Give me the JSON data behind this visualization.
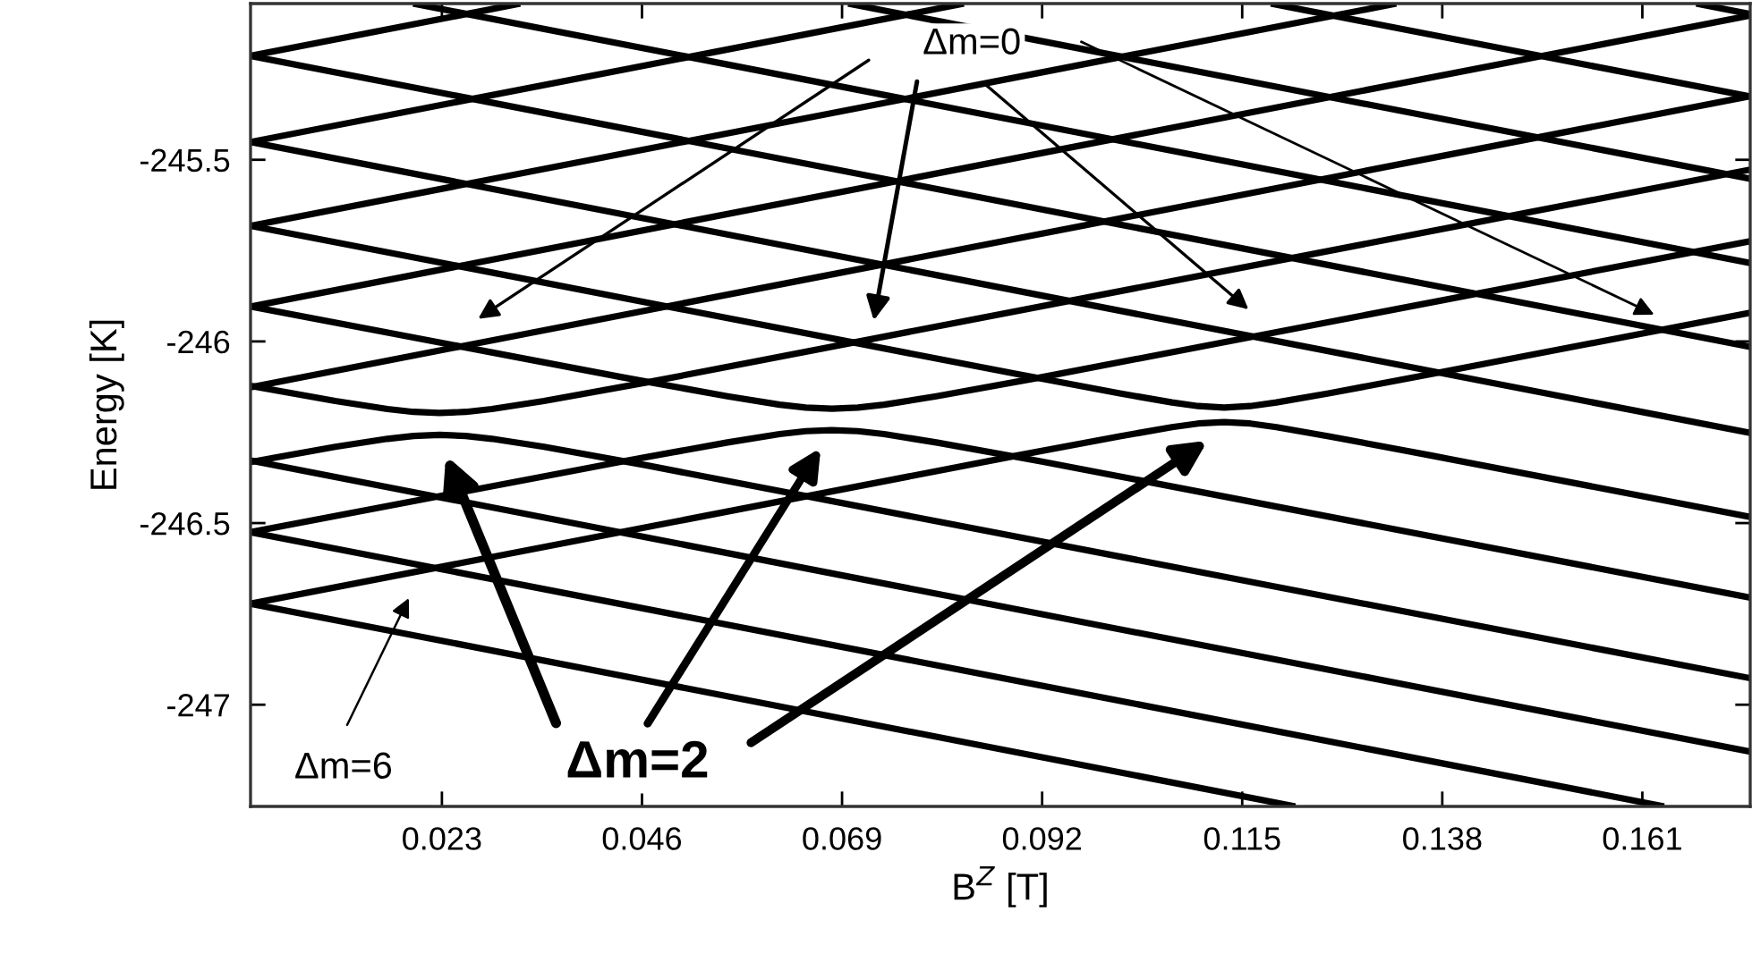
{
  "chart_data": {
    "type": "line",
    "xlabel": "B$^{Z}$ [T]",
    "ylabel": "Energy [K]",
    "xlim": [
      0.001,
      0.1734
    ],
    "ylim": [
      -247.28,
      -245.07
    ],
    "xticks": [
      0.023,
      0.046,
      0.069,
      0.092,
      0.115,
      0.138,
      0.161
    ],
    "yticks": [
      -247,
      -246.5,
      -246,
      -245.5
    ],
    "grid": false,
    "legend": false,
    "marker": "none",
    "line_style": "solid",
    "annotations": [
      "Δm=0",
      "Δm=2",
      "Δm=6"
    ],
    "series": [
      {
        "color": "#000000",
        "x": [
          0.001,
          0.032
        ],
        "values": [
          -245.214,
          -245.07
        ]
      },
      {
        "color": "#000000",
        "x": [
          0.001,
          0.083
        ],
        "values": [
          -245.451,
          -245.07
        ]
      },
      {
        "color": "#000000",
        "x": [
          0.001,
          0.1327
        ],
        "values": [
          -245.682,
          -245.07
        ]
      },
      {
        "color": "#000000",
        "x": [
          0.001,
          0.1734
        ],
        "values": [
          -245.904,
          -245.103
        ]
      },
      {
        "color": "#000000",
        "x": [
          0.001,
          0.1734
        ],
        "values": [
          -246.126,
          -245.325
        ]
      },
      {
        "color": "#000000",
        "x": [
          0.1672,
          0.1734
        ],
        "values": [
          -245.07,
          -245.099
        ]
      },
      {
        "color": "#000000",
        "x": [
          0.1183,
          0.1734
        ],
        "values": [
          -245.07,
          -245.326
        ]
      },
      {
        "color": "#000000",
        "x": [
          0.0697,
          0.1734
        ],
        "values": [
          -245.07,
          -245.552
        ]
      },
      {
        "color": "#000000",
        "x": [
          0.0197,
          0.1734
        ],
        "values": [
          -245.07,
          -245.784
        ]
      },
      {
        "color": "#000000",
        "x": [
          0.001,
          0.1734
        ],
        "values": [
          -245.214,
          -246.015
        ]
      },
      {
        "color": "#000000",
        "x": [
          0.001,
          0.1734
        ],
        "values": [
          -245.451,
          -246.252
        ]
      },
      {
        "color": "#000000",
        "x": [
          0.001,
          0.1734
        ],
        "values": [
          -246.328,
          -247.129
        ]
      },
      {
        "color": "#000000",
        "x": [
          0.001,
          0.1635
        ],
        "values": [
          -246.525,
          -247.28
        ]
      },
      {
        "color": "#000000",
        "x": [
          0.001,
          0.1211
        ],
        "values": [
          -246.722,
          -247.28
        ]
      },
      {
        "color": "#000000",
        "x": [
          0.001,
          0.01074,
          0.01674,
          0.01974,
          0.02274,
          0.02574,
          0.02874,
          0.03474,
          0.04674,
          0.1734
        ],
        "values": [
          -246.122,
          -246.164,
          -246.186,
          -246.194,
          -246.197,
          -246.194,
          -246.186,
          -246.164,
          -246.112,
          -245.527
        ]
      },
      {
        "color": "#000000",
        "x": [
          0.001,
          0.01074,
          0.01674,
          0.01974,
          0.02274,
          0.02574,
          0.02874,
          0.03474,
          0.04674,
          0.1734
        ],
        "values": [
          -246.332,
          -246.29,
          -246.268,
          -246.26,
          -246.257,
          -246.26,
          -246.268,
          -246.29,
          -246.342,
          -246.927
        ]
      },
      {
        "color": "#000000",
        "x": [
          0.001,
          0.04383,
          0.05583,
          0.06183,
          0.06483,
          0.06783,
          0.07083,
          0.07383,
          0.07983,
          0.09183,
          0.1734
        ],
        "values": [
          -245.904,
          -246.099,
          -246.151,
          -246.174,
          -246.182,
          -246.185,
          -246.182,
          -246.174,
          -246.151,
          -246.099,
          -245.724
        ]
      },
      {
        "color": "#000000",
        "x": [
          0.001,
          0.04383,
          0.05583,
          0.06183,
          0.06483,
          0.06783,
          0.07083,
          0.07383,
          0.07983,
          0.09183,
          0.1734
        ],
        "values": [
          -246.525,
          -246.33,
          -246.278,
          -246.255,
          -246.247,
          -246.244,
          -246.247,
          -246.255,
          -246.278,
          -246.33,
          -246.705
        ]
      },
      {
        "color": "#000000",
        "x": [
          0.001,
          0.08893,
          0.10093,
          0.10693,
          0.10993,
          0.11293,
          0.11593,
          0.11893,
          0.12493,
          0.13693,
          0.1734
        ],
        "values": [
          -245.682,
          -246.089,
          -246.143,
          -246.168,
          -246.178,
          -246.182,
          -246.178,
          -246.168,
          -246.143,
          -246.089,
          -245.921
        ]
      },
      {
        "color": "#000000",
        "x": [
          0.001,
          0.08893,
          0.10093,
          0.10693,
          0.10993,
          0.11293,
          0.11593,
          0.11893,
          0.12493,
          0.13693,
          0.1734
        ],
        "values": [
          -246.722,
          -246.315,
          -246.261,
          -246.236,
          -246.226,
          -246.222,
          -246.226,
          -246.236,
          -246.261,
          -246.315,
          -246.483
        ]
      }
    ]
  }
}
